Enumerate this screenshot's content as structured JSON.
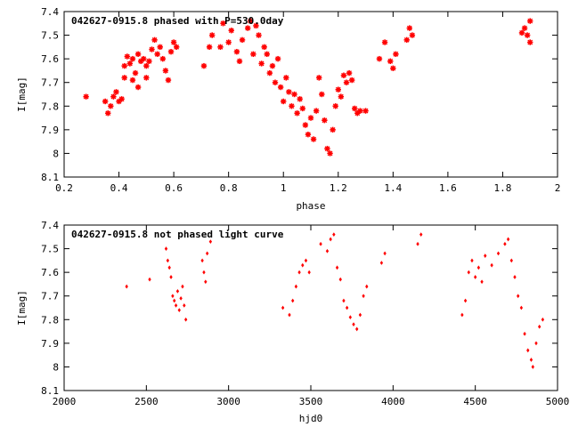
{
  "chart_data": [
    {
      "type": "scatter",
      "title": "042627-0915.8 phased with P=530.0day",
      "xlabel": "phase",
      "ylabel": "I[mag]",
      "xlim": [
        0.2,
        2.0
      ],
      "ylim": [
        8.1,
        7.4
      ],
      "y_inverted": true,
      "xticks": [
        "0.2",
        "0.4",
        "0.6",
        "0.8",
        "1",
        "1.2",
        "1.4",
        "1.6",
        "1.8",
        "2"
      ],
      "yticks": [
        "7.4",
        "7.5",
        "7.6",
        "7.7",
        "7.8",
        "7.9",
        "8",
        "8.1"
      ],
      "marker_color": "#ff0000",
      "marker": "asterisk",
      "grid": false,
      "points": [
        [
          0.28,
          7.76
        ],
        [
          0.35,
          7.78
        ],
        [
          0.36,
          7.83
        ],
        [
          0.37,
          7.8
        ],
        [
          0.38,
          7.76
        ],
        [
          0.39,
          7.74
        ],
        [
          0.4,
          7.78
        ],
        [
          0.41,
          7.77
        ],
        [
          0.42,
          7.68
        ],
        [
          0.42,
          7.63
        ],
        [
          0.43,
          7.59
        ],
        [
          0.44,
          7.62
        ],
        [
          0.45,
          7.6
        ],
        [
          0.45,
          7.69
        ],
        [
          0.46,
          7.66
        ],
        [
          0.47,
          7.58
        ],
        [
          0.47,
          7.72
        ],
        [
          0.48,
          7.61
        ],
        [
          0.49,
          7.6
        ],
        [
          0.5,
          7.68
        ],
        [
          0.5,
          7.63
        ],
        [
          0.51,
          7.61
        ],
        [
          0.52,
          7.56
        ],
        [
          0.53,
          7.52
        ],
        [
          0.54,
          7.58
        ],
        [
          0.55,
          7.55
        ],
        [
          0.56,
          7.6
        ],
        [
          0.57,
          7.65
        ],
        [
          0.58,
          7.69
        ],
        [
          0.59,
          7.57
        ],
        [
          0.6,
          7.53
        ],
        [
          0.61,
          7.55
        ],
        [
          0.71,
          7.63
        ],
        [
          0.73,
          7.55
        ],
        [
          0.74,
          7.5
        ],
        [
          0.77,
          7.55
        ],
        [
          0.78,
          7.45
        ],
        [
          0.8,
          7.53
        ],
        [
          0.81,
          7.48
        ],
        [
          0.83,
          7.57
        ],
        [
          0.84,
          7.61
        ],
        [
          0.85,
          7.52
        ],
        [
          0.87,
          7.47
        ],
        [
          0.88,
          7.44
        ],
        [
          0.89,
          7.58
        ],
        [
          0.9,
          7.46
        ],
        [
          0.91,
          7.5
        ],
        [
          0.92,
          7.62
        ],
        [
          0.93,
          7.55
        ],
        [
          0.94,
          7.58
        ],
        [
          0.95,
          7.66
        ],
        [
          0.96,
          7.63
        ],
        [
          0.97,
          7.7
        ],
        [
          0.98,
          7.6
        ],
        [
          0.99,
          7.72
        ],
        [
          1.0,
          7.78
        ],
        [
          1.01,
          7.68
        ],
        [
          1.02,
          7.74
        ],
        [
          1.03,
          7.8
        ],
        [
          1.04,
          7.75
        ],
        [
          1.05,
          7.83
        ],
        [
          1.06,
          7.77
        ],
        [
          1.07,
          7.81
        ],
        [
          1.08,
          7.88
        ],
        [
          1.09,
          7.92
        ],
        [
          1.1,
          7.85
        ],
        [
          1.11,
          7.94
        ],
        [
          1.12,
          7.82
        ],
        [
          1.13,
          7.68
        ],
        [
          1.14,
          7.75
        ],
        [
          1.15,
          7.86
        ],
        [
          1.16,
          7.98
        ],
        [
          1.17,
          8.0
        ],
        [
          1.18,
          7.9
        ],
        [
          1.19,
          7.8
        ],
        [
          1.2,
          7.73
        ],
        [
          1.21,
          7.76
        ],
        [
          1.22,
          7.67
        ],
        [
          1.23,
          7.7
        ],
        [
          1.24,
          7.66
        ],
        [
          1.25,
          7.69
        ],
        [
          1.26,
          7.81
        ],
        [
          1.27,
          7.83
        ],
        [
          1.28,
          7.82
        ],
        [
          1.3,
          7.82
        ],
        [
          1.35,
          7.6
        ],
        [
          1.37,
          7.53
        ],
        [
          1.39,
          7.61
        ],
        [
          1.4,
          7.64
        ],
        [
          1.41,
          7.58
        ],
        [
          1.45,
          7.52
        ],
        [
          1.46,
          7.47
        ],
        [
          1.47,
          7.5
        ],
        [
          1.87,
          7.49
        ],
        [
          1.88,
          7.47
        ],
        [
          1.89,
          7.5
        ],
        [
          1.9,
          7.53
        ],
        [
          1.9,
          7.44
        ]
      ]
    },
    {
      "type": "scatter",
      "title": "042627-0915.8 not phased light curve",
      "xlabel": "hjd0",
      "ylabel": "I[mag]",
      "xlim": [
        2000,
        5000
      ],
      "ylim": [
        8.1,
        7.4
      ],
      "y_inverted": true,
      "xticks": [
        "2000",
        "2500",
        "3000",
        "3500",
        "4000",
        "4500",
        "5000"
      ],
      "yticks": [
        "7.4",
        "7.5",
        "7.6",
        "7.7",
        "7.8",
        "7.9",
        "8",
        "8.1"
      ],
      "marker_color": "#ff0000",
      "marker": "diamond",
      "grid": false,
      "points": [
        [
          2380,
          7.66
        ],
        [
          2520,
          7.63
        ],
        [
          2620,
          7.5
        ],
        [
          2630,
          7.55
        ],
        [
          2640,
          7.58
        ],
        [
          2650,
          7.62
        ],
        [
          2660,
          7.7
        ],
        [
          2670,
          7.72
        ],
        [
          2680,
          7.74
        ],
        [
          2690,
          7.68
        ],
        [
          2700,
          7.76
        ],
        [
          2710,
          7.71
        ],
        [
          2720,
          7.66
        ],
        [
          2730,
          7.74
        ],
        [
          2740,
          7.8
        ],
        [
          2840,
          7.55
        ],
        [
          2850,
          7.6
        ],
        [
          2860,
          7.64
        ],
        [
          2870,
          7.52
        ],
        [
          2890,
          7.47
        ],
        [
          3330,
          7.75
        ],
        [
          3370,
          7.78
        ],
        [
          3390,
          7.72
        ],
        [
          3410,
          7.66
        ],
        [
          3430,
          7.6
        ],
        [
          3450,
          7.57
        ],
        [
          3470,
          7.55
        ],
        [
          3490,
          7.6
        ],
        [
          3560,
          7.48
        ],
        [
          3600,
          7.51
        ],
        [
          3620,
          7.46
        ],
        [
          3640,
          7.44
        ],
        [
          3660,
          7.58
        ],
        [
          3680,
          7.63
        ],
        [
          3700,
          7.72
        ],
        [
          3720,
          7.75
        ],
        [
          3740,
          7.79
        ],
        [
          3760,
          7.82
        ],
        [
          3780,
          7.84
        ],
        [
          3800,
          7.78
        ],
        [
          3820,
          7.7
        ],
        [
          3840,
          7.66
        ],
        [
          3930,
          7.56
        ],
        [
          3950,
          7.52
        ],
        [
          4150,
          7.48
        ],
        [
          4170,
          7.44
        ],
        [
          4420,
          7.78
        ],
        [
          4440,
          7.72
        ],
        [
          4460,
          7.6
        ],
        [
          4480,
          7.55
        ],
        [
          4500,
          7.62
        ],
        [
          4520,
          7.58
        ],
        [
          4540,
          7.64
        ],
        [
          4560,
          7.53
        ],
        [
          4600,
          7.57
        ],
        [
          4640,
          7.52
        ],
        [
          4680,
          7.48
        ],
        [
          4700,
          7.46
        ],
        [
          4720,
          7.55
        ],
        [
          4740,
          7.62
        ],
        [
          4760,
          7.7
        ],
        [
          4780,
          7.75
        ],
        [
          4800,
          7.86
        ],
        [
          4820,
          7.93
        ],
        [
          4840,
          7.97
        ],
        [
          4850,
          8.0
        ],
        [
          4870,
          7.9
        ],
        [
          4890,
          7.83
        ],
        [
          4910,
          7.8
        ]
      ]
    }
  ]
}
